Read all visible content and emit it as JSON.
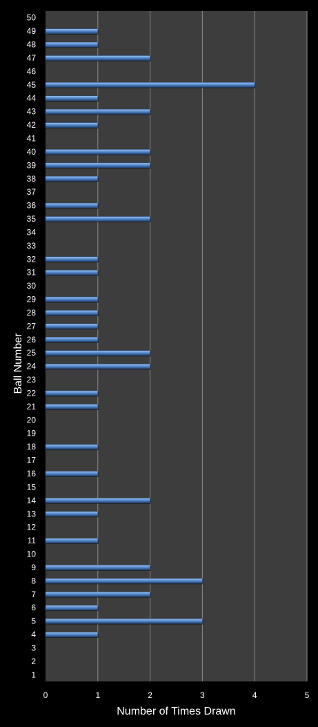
{
  "chart_data": {
    "type": "bar",
    "orientation": "horizontal",
    "title": "",
    "xlabel": "Number of Times Drawn",
    "ylabel": "Ball Number",
    "xlim": [
      0,
      5
    ],
    "x_ticks": [
      0,
      1,
      2,
      3,
      4,
      5
    ],
    "grid": "vertical",
    "legend": "none",
    "categories": [
      "1",
      "2",
      "3",
      "4",
      "5",
      "6",
      "7",
      "8",
      "9",
      "10",
      "11",
      "12",
      "13",
      "14",
      "15",
      "16",
      "17",
      "18",
      "19",
      "20",
      "21",
      "22",
      "23",
      "24",
      "25",
      "26",
      "27",
      "28",
      "29",
      "30",
      "31",
      "32",
      "33",
      "34",
      "35",
      "36",
      "37",
      "38",
      "39",
      "40",
      "41",
      "42",
      "43",
      "44",
      "45",
      "46",
      "47",
      "48",
      "49",
      "50"
    ],
    "values": [
      0,
      0,
      0,
      1,
      3,
      1,
      2,
      3,
      2,
      0,
      1,
      0,
      1,
      2,
      0,
      1,
      0,
      1,
      0,
      0,
      1,
      1,
      0,
      2,
      2,
      1,
      1,
      1,
      1,
      0,
      1,
      1,
      0,
      0,
      2,
      1,
      0,
      1,
      2,
      2,
      0,
      1,
      2,
      1,
      4,
      0,
      2,
      1,
      1,
      0
    ]
  },
  "colors": {
    "background": "#000000",
    "plot_area": "#3d3d3d",
    "grid": "#8a8a8a",
    "bar": "#4f81bd",
    "bar_highlight": "#9dc3ee",
    "text": "#ffffff"
  }
}
